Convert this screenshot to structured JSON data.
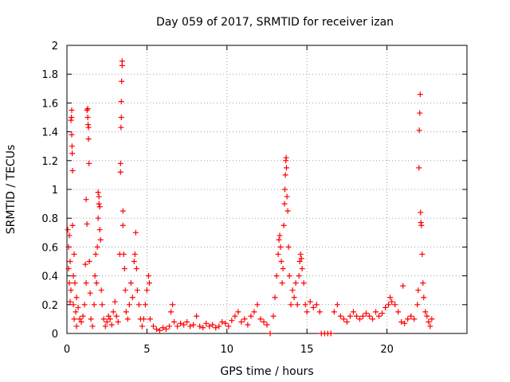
{
  "chart_data": {
    "type": "scatter",
    "title": "Day 059 of 2017, SRMTID for receiver izan",
    "xlabel": "GPS time / hours",
    "ylabel": "SRMTID / TECUs",
    "xlim": [
      0,
      25
    ],
    "ylim": [
      0,
      2
    ],
    "xticks": [
      "0",
      "5",
      "10",
      "15",
      "20"
    ],
    "yticks": [
      "0",
      "0.2",
      "0.4",
      "0.6",
      "0.8",
      "1",
      "1.2",
      "1.4",
      "1.6",
      "1.8",
      "2"
    ],
    "grid": true,
    "marker": "+",
    "series": [
      {
        "name": "SRMTID",
        "color": "#ff0000",
        "points": [
          [
            0.05,
            0.72
          ],
          [
            0.1,
            0.6
          ],
          [
            0.1,
            0.45
          ],
          [
            0.15,
            0.35
          ],
          [
            0.15,
            0.68
          ],
          [
            0.2,
            0.5
          ],
          [
            0.2,
            0.22
          ],
          [
            0.25,
            0.3
          ],
          [
            0.25,
            1.48
          ],
          [
            0.28,
            1.5
          ],
          [
            0.3,
            1.55
          ],
          [
            0.3,
            1.38
          ],
          [
            0.32,
            1.3
          ],
          [
            0.33,
            1.25
          ],
          [
            0.35,
            1.13
          ],
          [
            0.35,
            0.75
          ],
          [
            0.4,
            0.4
          ],
          [
            0.4,
            0.2
          ],
          [
            0.45,
            0.55
          ],
          [
            0.45,
            0.1
          ],
          [
            0.5,
            0.35
          ],
          [
            0.55,
            0.15
          ],
          [
            0.6,
            0.25
          ],
          [
            0.6,
            0.05
          ],
          [
            0.7,
            0.18
          ],
          [
            0.8,
            0.1
          ],
          [
            0.9,
            0.08
          ],
          [
            1.0,
            0.12
          ],
          [
            1.1,
            0.2
          ],
          [
            1.15,
            0.48
          ],
          [
            1.2,
            0.35
          ],
          [
            1.2,
            0.93
          ],
          [
            1.25,
            0.76
          ],
          [
            1.25,
            1.55
          ],
          [
            1.3,
            1.56
          ],
          [
            1.3,
            1.5
          ],
          [
            1.32,
            1.45
          ],
          [
            1.35,
            1.43
          ],
          [
            1.35,
            1.35
          ],
          [
            1.38,
            1.18
          ],
          [
            1.4,
            0.5
          ],
          [
            1.45,
            0.28
          ],
          [
            1.5,
            0.1
          ],
          [
            1.6,
            0.05
          ],
          [
            1.7,
            0.2
          ],
          [
            1.75,
            0.4
          ],
          [
            1.8,
            0.55
          ],
          [
            1.85,
            0.35
          ],
          [
            1.9,
            0.6
          ],
          [
            1.95,
            0.8
          ],
          [
            1.95,
            0.98
          ],
          [
            2.0,
            0.95
          ],
          [
            2.0,
            0.9
          ],
          [
            2.05,
            0.88
          ],
          [
            2.05,
            0.72
          ],
          [
            2.1,
            0.65
          ],
          [
            2.15,
            0.3
          ],
          [
            2.2,
            0.2
          ],
          [
            2.3,
            0.1
          ],
          [
            2.4,
            0.05
          ],
          [
            2.5,
            0.08
          ],
          [
            2.6,
            0.12
          ],
          [
            2.7,
            0.1
          ],
          [
            2.8,
            0.06
          ],
          [
            2.9,
            0.15
          ],
          [
            3.0,
            0.22
          ],
          [
            3.1,
            0.12
          ],
          [
            3.2,
            0.08
          ],
          [
            3.3,
            0.55
          ],
          [
            3.35,
            1.12
          ],
          [
            3.35,
            1.18
          ],
          [
            3.38,
            1.43
          ],
          [
            3.4,
            1.5
          ],
          [
            3.4,
            1.61
          ],
          [
            3.42,
            1.75
          ],
          [
            3.45,
            1.86
          ],
          [
            3.45,
            1.89
          ],
          [
            3.5,
            0.85
          ],
          [
            3.5,
            0.75
          ],
          [
            3.55,
            0.55
          ],
          [
            3.6,
            0.45
          ],
          [
            3.65,
            0.3
          ],
          [
            3.7,
            0.15
          ],
          [
            3.8,
            0.1
          ],
          [
            3.9,
            0.2
          ],
          [
            4.0,
            0.35
          ],
          [
            4.1,
            0.25
          ],
          [
            4.2,
            0.5
          ],
          [
            4.25,
            0.55
          ],
          [
            4.3,
            0.7
          ],
          [
            4.35,
            0.45
          ],
          [
            4.4,
            0.3
          ],
          [
            4.5,
            0.2
          ],
          [
            4.6,
            0.1
          ],
          [
            4.7,
            0.05
          ],
          [
            4.8,
            0.1
          ],
          [
            4.9,
            0.2
          ],
          [
            5.0,
            0.3
          ],
          [
            5.1,
            0.4
          ],
          [
            5.15,
            0.35
          ],
          [
            5.2,
            0.1
          ],
          [
            5.4,
            0.05
          ],
          [
            5.6,
            0.03
          ],
          [
            5.8,
            0.02
          ],
          [
            6.0,
            0.04
          ],
          [
            6.2,
            0.03
          ],
          [
            6.4,
            0.05
          ],
          [
            6.5,
            0.15
          ],
          [
            6.6,
            0.2
          ],
          [
            6.7,
            0.08
          ],
          [
            6.9,
            0.05
          ],
          [
            7.1,
            0.07
          ],
          [
            7.3,
            0.06
          ],
          [
            7.5,
            0.08
          ],
          [
            7.7,
            0.05
          ],
          [
            7.9,
            0.06
          ],
          [
            8.1,
            0.12
          ],
          [
            8.3,
            0.05
          ],
          [
            8.5,
            0.04
          ],
          [
            8.7,
            0.07
          ],
          [
            8.9,
            0.05
          ],
          [
            9.1,
            0.06
          ],
          [
            9.3,
            0.04
          ],
          [
            9.5,
            0.05
          ],
          [
            9.7,
            0.08
          ],
          [
            9.9,
            0.07
          ],
          [
            10.1,
            0.05
          ],
          [
            10.3,
            0.09
          ],
          [
            10.5,
            0.12
          ],
          [
            10.7,
            0.15
          ],
          [
            10.9,
            0.08
          ],
          [
            11.1,
            0.1
          ],
          [
            11.3,
            0.06
          ],
          [
            11.5,
            0.12
          ],
          [
            11.7,
            0.15
          ],
          [
            11.9,
            0.2
          ],
          [
            12.1,
            0.1
          ],
          [
            12.3,
            0.08
          ],
          [
            12.5,
            0.06
          ],
          [
            12.7,
            0.0
          ],
          [
            12.9,
            0.12
          ],
          [
            13.0,
            0.25
          ],
          [
            13.1,
            0.4
          ],
          [
            13.2,
            0.55
          ],
          [
            13.25,
            0.65
          ],
          [
            13.3,
            0.68
          ],
          [
            13.35,
            0.6
          ],
          [
            13.4,
            0.5
          ],
          [
            13.45,
            0.35
          ],
          [
            13.5,
            0.45
          ],
          [
            13.55,
            0.75
          ],
          [
            13.6,
            0.9
          ],
          [
            13.62,
            1.0
          ],
          [
            13.65,
            1.1
          ],
          [
            13.68,
            1.2
          ],
          [
            13.7,
            1.22
          ],
          [
            13.72,
            1.15
          ],
          [
            13.75,
            0.95
          ],
          [
            13.8,
            0.85
          ],
          [
            13.85,
            0.6
          ],
          [
            13.9,
            0.4
          ],
          [
            14.0,
            0.2
          ],
          [
            14.1,
            0.3
          ],
          [
            14.2,
            0.25
          ],
          [
            14.3,
            0.35
          ],
          [
            14.4,
            0.2
          ],
          [
            14.5,
            0.4
          ],
          [
            14.55,
            0.5
          ],
          [
            14.6,
            0.55
          ],
          [
            14.65,
            0.52
          ],
          [
            14.7,
            0.45
          ],
          [
            14.8,
            0.35
          ],
          [
            14.9,
            0.2
          ],
          [
            15.0,
            0.15
          ],
          [
            15.2,
            0.22
          ],
          [
            15.4,
            0.18
          ],
          [
            15.6,
            0.2
          ],
          [
            15.8,
            0.15
          ],
          [
            15.9,
            0.0
          ],
          [
            16.1,
            0.0
          ],
          [
            16.3,
            0.0
          ],
          [
            16.5,
            0.0
          ],
          [
            16.7,
            0.15
          ],
          [
            16.9,
            0.2
          ],
          [
            17.1,
            0.12
          ],
          [
            17.3,
            0.1
          ],
          [
            17.5,
            0.08
          ],
          [
            17.7,
            0.12
          ],
          [
            17.9,
            0.15
          ],
          [
            18.1,
            0.12
          ],
          [
            18.3,
            0.1
          ],
          [
            18.5,
            0.12
          ],
          [
            18.7,
            0.14
          ],
          [
            18.9,
            0.12
          ],
          [
            19.1,
            0.1
          ],
          [
            19.3,
            0.15
          ],
          [
            19.5,
            0.12
          ],
          [
            19.7,
            0.14
          ],
          [
            19.9,
            0.18
          ],
          [
            20.1,
            0.2
          ],
          [
            20.2,
            0.25
          ],
          [
            20.3,
            0.22
          ],
          [
            20.5,
            0.2
          ],
          [
            20.7,
            0.15
          ],
          [
            20.9,
            0.08
          ],
          [
            21.0,
            0.33
          ],
          [
            21.1,
            0.07
          ],
          [
            21.3,
            0.1
          ],
          [
            21.5,
            0.12
          ],
          [
            21.7,
            0.1
          ],
          [
            21.9,
            0.2
          ],
          [
            21.95,
            0.3
          ],
          [
            22.0,
            1.15
          ],
          [
            22.02,
            1.41
          ],
          [
            22.05,
            1.53
          ],
          [
            22.08,
            1.66
          ],
          [
            22.1,
            0.84
          ],
          [
            22.12,
            0.77
          ],
          [
            22.15,
            0.75
          ],
          [
            22.2,
            0.55
          ],
          [
            22.25,
            0.35
          ],
          [
            22.3,
            0.25
          ],
          [
            22.4,
            0.15
          ],
          [
            22.5,
            0.12
          ],
          [
            22.6,
            0.08
          ],
          [
            22.7,
            0.05
          ],
          [
            22.8,
            0.1
          ]
        ]
      }
    ]
  }
}
